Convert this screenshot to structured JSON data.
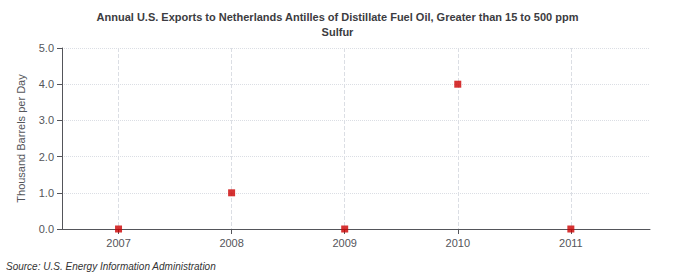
{
  "chart_data": {
    "type": "scatter",
    "title": "Annual U.S. Exports to Netherlands Antilles of Distillate Fuel Oil, Greater than 15 to 500 ppm\nSulfur",
    "y_label": "Thousand Barrels per Day",
    "annotation": "Source: U.S. Energy Information Administration",
    "x": [
      2007,
      2008,
      2009,
      2010,
      2011
    ],
    "values": [
      0,
      1,
      0,
      4,
      0
    ],
    "color": "#cc0000",
    "marker": "square",
    "xlim": [
      2006.5,
      2011.7
    ],
    "xticks": [
      2007,
      2008,
      2009,
      2010,
      2011
    ],
    "ylim": [
      0,
      5.0
    ],
    "yticks": [
      {
        "value": 0.0,
        "label": "0.0"
      },
      {
        "value": 1.0,
        "label": "1.0"
      },
      {
        "value": 2.0,
        "label": "2.0"
      },
      {
        "value": 3.0,
        "label": "3.0"
      },
      {
        "value": 4.0,
        "label": "4.0"
      },
      {
        "value": 5.0,
        "label": "5.0"
      }
    ],
    "grid": true
  }
}
